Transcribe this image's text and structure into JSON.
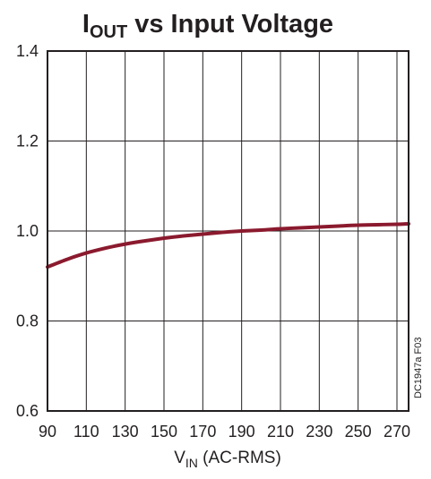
{
  "chart_data": {
    "type": "line",
    "title": {
      "main": "I",
      "subscript": "OUT",
      "rest": " vs Input Voltage"
    },
    "xlabel": {
      "main": "V",
      "subscript": "IN",
      "rest": " (AC-RMS)"
    },
    "ylabel": "",
    "xlim": [
      90,
      276
    ],
    "ylim": [
      0.6,
      1.4
    ],
    "x_ticks": [
      "90",
      "110",
      "130",
      "150",
      "170",
      "190",
      "210",
      "230",
      "250",
      "270"
    ],
    "y_ticks": [
      "0.6",
      "0.8",
      "1.0",
      "1.2",
      "1.4"
    ],
    "grid": true,
    "figure_code": "DC1947a F03",
    "series": [
      {
        "color": "#8b1a2e",
        "points": [
          [
            90,
            0.92
          ],
          [
            100,
            0.937
          ],
          [
            110,
            0.951
          ],
          [
            120,
            0.962
          ],
          [
            130,
            0.971
          ],
          [
            140,
            0.978
          ],
          [
            150,
            0.984
          ],
          [
            160,
            0.989
          ],
          [
            170,
            0.993
          ],
          [
            180,
            0.997
          ],
          [
            190,
            1.0
          ],
          [
            200,
            1.002
          ],
          [
            210,
            1.005
          ],
          [
            220,
            1.007
          ],
          [
            230,
            1.009
          ],
          [
            240,
            1.011
          ],
          [
            250,
            1.013
          ],
          [
            260,
            1.014
          ],
          [
            270,
            1.015
          ],
          [
            276,
            1.016
          ]
        ]
      }
    ]
  }
}
